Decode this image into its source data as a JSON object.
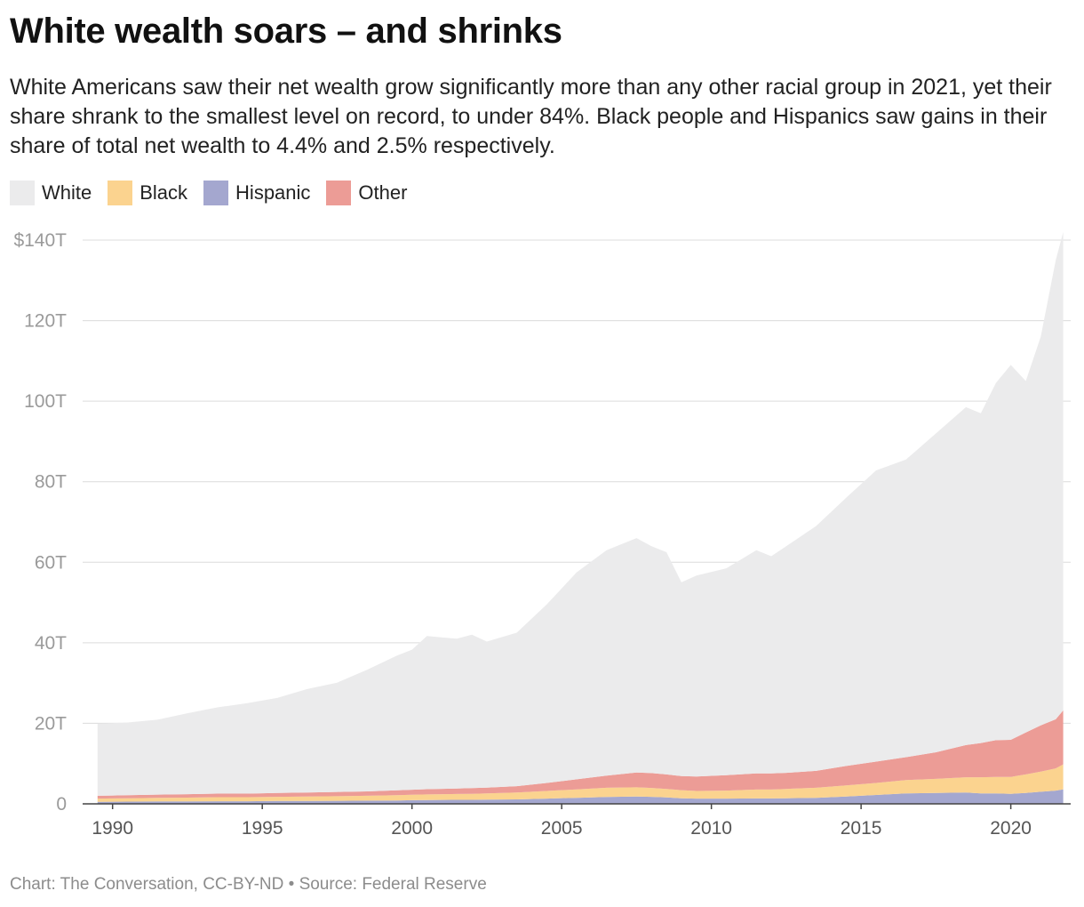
{
  "title": "White wealth soars – and shrinks",
  "subtitle": "White Americans saw their net wealth grow significantly more than any other racial group in 2021, yet their share shrank to the smallest level on record, to under 84%. Black people and Hispanics saw gains in their share of total net wealth to 4.4% and 2.5% respectively.",
  "footer": {
    "credit": "Chart: The Conversation, CC-BY-ND",
    "separator": "•",
    "source": "Source: Federal Reserve"
  },
  "chart_data": {
    "type": "area",
    "stacked": true,
    "unit": "trillion USD",
    "x": [
      1989.5,
      1990.5,
      1991.5,
      1992.5,
      1993.5,
      1994.5,
      1995.5,
      1996.5,
      1997.5,
      1998.5,
      1999.5,
      2000.0,
      2000.5,
      2001.5,
      2002.0,
      2002.5,
      2003.5,
      2004.5,
      2005.5,
      2006.5,
      2007.5,
      2008.0,
      2008.5,
      2009.0,
      2009.5,
      2010.5,
      2011.5,
      2012.0,
      2012.5,
      2013.5,
      2014.5,
      2015.5,
      2016.5,
      2017.5,
      2018.5,
      2019.0,
      2019.5,
      2020.0,
      2020.5,
      2021.0,
      2021.5,
      2021.75
    ],
    "series": [
      {
        "name": "Hispanic",
        "color": "#a4a7cf",
        "values": [
          0.5,
          0.55,
          0.6,
          0.6,
          0.65,
          0.65,
          0.7,
          0.7,
          0.75,
          0.8,
          0.85,
          0.9,
          0.95,
          1.0,
          1.0,
          1.05,
          1.1,
          1.3,
          1.5,
          1.7,
          1.8,
          1.75,
          1.6,
          1.4,
          1.3,
          1.3,
          1.35,
          1.35,
          1.4,
          1.5,
          1.8,
          2.2,
          2.6,
          2.7,
          2.8,
          2.6,
          2.6,
          2.5,
          2.7,
          3.0,
          3.3,
          3.6
        ]
      },
      {
        "name": "Black",
        "color": "#fbd38f",
        "values": [
          0.8,
          0.85,
          0.9,
          0.95,
          1.0,
          1.0,
          1.05,
          1.1,
          1.15,
          1.2,
          1.3,
          1.35,
          1.4,
          1.45,
          1.5,
          1.55,
          1.7,
          1.9,
          2.1,
          2.3,
          2.3,
          2.2,
          2.1,
          2.0,
          1.9,
          2.0,
          2.2,
          2.2,
          2.3,
          2.5,
          2.8,
          3.0,
          3.3,
          3.5,
          3.8,
          4.0,
          4.1,
          4.2,
          4.6,
          5.0,
          5.5,
          6.2
        ]
      },
      {
        "name": "Other",
        "color": "#ec9c96",
        "values": [
          0.7,
          0.75,
          0.8,
          0.85,
          0.9,
          0.9,
          0.95,
          1.0,
          1.05,
          1.1,
          1.2,
          1.25,
          1.3,
          1.35,
          1.4,
          1.45,
          1.6,
          2.0,
          2.5,
          3.0,
          3.7,
          3.7,
          3.6,
          3.5,
          3.6,
          3.8,
          4.0,
          4.0,
          4.0,
          4.2,
          4.8,
          5.3,
          5.7,
          6.6,
          8.0,
          8.5,
          9.1,
          9.2,
          10.4,
          11.5,
          12.2,
          13.4
        ]
      },
      {
        "name": "White",
        "color": "#ebebec",
        "values": [
          17.9,
          18.05,
          18.6,
          20.1,
          21.4,
          22.45,
          23.6,
          25.7,
          27.15,
          30.2,
          33.45,
          34.8,
          38.05,
          37.2,
          38.1,
          36.25,
          38.1,
          44.3,
          51.4,
          56.0,
          58.2,
          56.35,
          55.2,
          48.1,
          49.9,
          51.4,
          55.45,
          53.95,
          56.3,
          60.8,
          66.6,
          72.3,
          73.9,
          79.2,
          83.9,
          81.9,
          88.7,
          93.1,
          87.3,
          96.5,
          114.0,
          118.8
        ]
      }
    ],
    "ylim": [
      0,
      140
    ],
    "yticks": [
      0,
      20,
      40,
      60,
      80,
      100,
      120,
      140
    ],
    "ytick_labels": [
      "0",
      "20T",
      "40T",
      "60T",
      "80T",
      "100T",
      "120T",
      "$140T"
    ],
    "xlim": [
      1989.0,
      2022.0
    ],
    "xticks": [
      1990,
      1995,
      2000,
      2005,
      2010,
      2015,
      2020
    ],
    "xtick_labels": [
      "1990",
      "1995",
      "2000",
      "2005",
      "2010",
      "2015",
      "2020"
    ],
    "grid": true,
    "legend": {
      "position": "top-left",
      "entries": [
        {
          "label": "White",
          "color": "#ebebec"
        },
        {
          "label": "Black",
          "color": "#fbd38f"
        },
        {
          "label": "Hispanic",
          "color": "#a4a7cf"
        },
        {
          "label": "Other",
          "color": "#ec9c96"
        }
      ]
    }
  }
}
